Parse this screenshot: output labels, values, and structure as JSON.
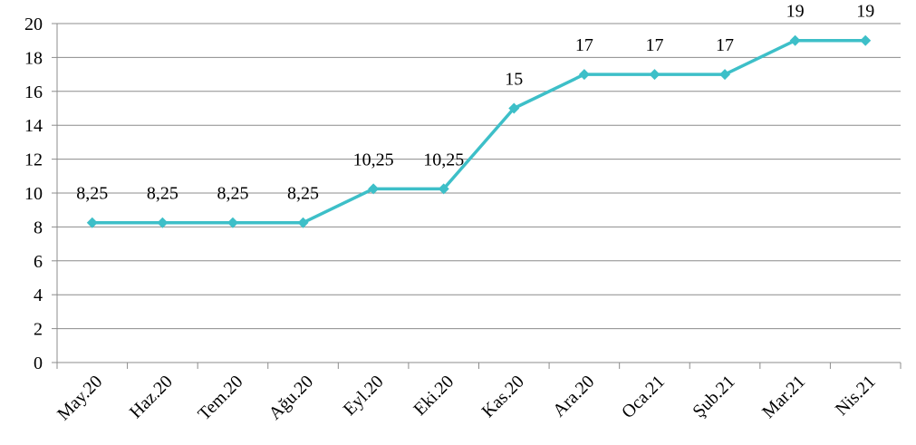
{
  "chart_data": {
    "type": "line",
    "categories": [
      "May.20",
      "Haz.20",
      "Tem.20",
      "Ağu.20",
      "Eyl.20",
      "Eki.20",
      "Kas.20",
      "Ara.20",
      "Oca.21",
      "Şub.21",
      "Mar.21",
      "Nis.21"
    ],
    "series": [
      {
        "values": [
          8.25,
          8.25,
          8.25,
          8.25,
          10.25,
          10.25,
          15,
          17,
          17,
          17,
          19,
          19
        ],
        "data_labels": [
          "8,25",
          "8,25",
          "8,25",
          "8,25",
          "10,25",
          "10,25",
          "15",
          "17",
          "17",
          "17",
          "19",
          "19"
        ],
        "color": "#3dbfc8",
        "marker": "diamond"
      }
    ],
    "y_ticks": [
      "0",
      "2",
      "4",
      "6",
      "8",
      "10",
      "12",
      "14",
      "16",
      "18",
      "20"
    ],
    "ylim": [
      0,
      20
    ],
    "grid": "horizontal",
    "legend": "none",
    "title": "",
    "xlabel": "",
    "ylabel": ""
  },
  "colors": {
    "line": "#3dbfc8",
    "grid": "#8c8c8c",
    "axis": "#8c8c8c"
  }
}
